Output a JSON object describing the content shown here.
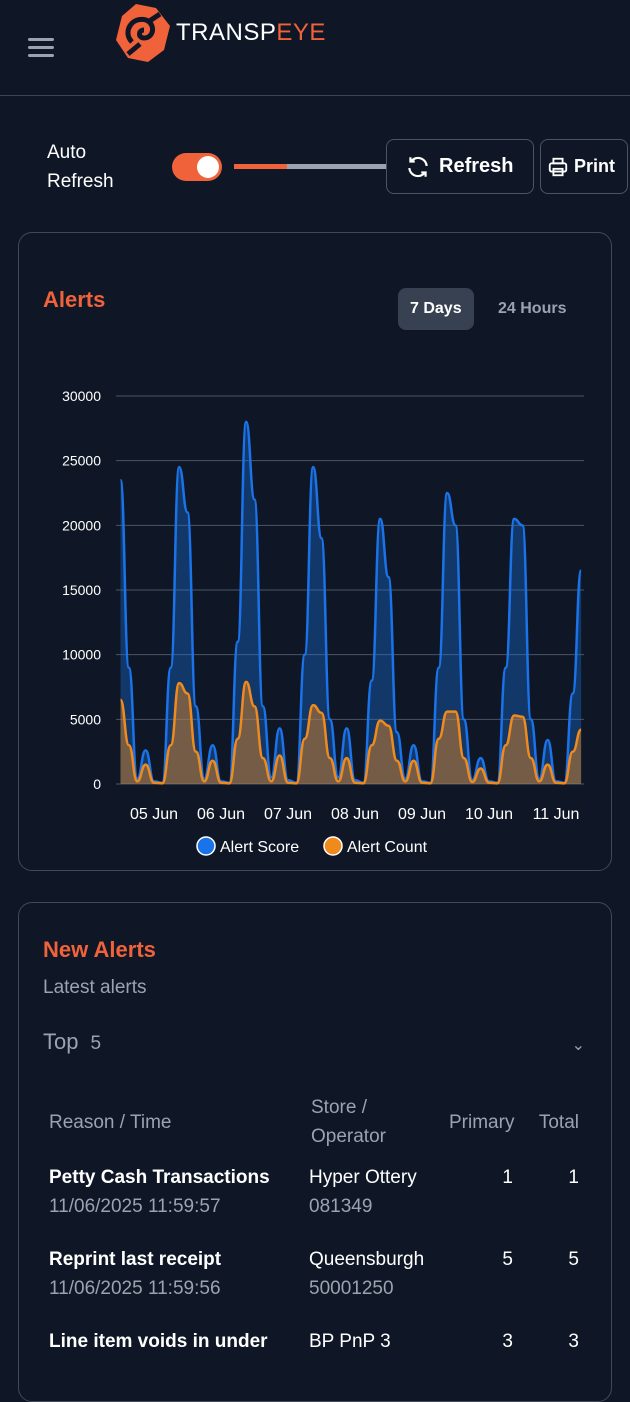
{
  "header": {
    "logo_text_a": "TRANSP",
    "logo_text_b": "EYE"
  },
  "controls": {
    "auto_refresh_label": "Auto Refresh",
    "auto_refresh_on": true,
    "refresh_progress": 0.35,
    "refresh_label": "Refresh",
    "print_label": "Print"
  },
  "alerts_card": {
    "title": "Alerts",
    "ranges": [
      "7 Days",
      "24 Hours"
    ],
    "selected_range": "7 Days"
  },
  "colors": {
    "accent": "#f0623a",
    "score": "#1a73e8",
    "count": "#f08a1c",
    "background": "#0f1726"
  },
  "chart_data": {
    "type": "area",
    "ylim": [
      0,
      30000
    ],
    "yticks": [
      0,
      5000,
      10000,
      15000,
      20000,
      25000,
      30000
    ],
    "xtick_labels": [
      "05 Jun",
      "06 Jun",
      "07 Jun",
      "08 Jun",
      "09 Jun",
      "10 Jun",
      "11 Jun"
    ],
    "grid": true,
    "legend_placement": "bottom",
    "x": [
      "04 Jun 12:00",
      "04 Jun 15:00",
      "04 Jun 18:00",
      "04 Jun 21:00",
      "05 Jun 00:00",
      "05 Jun 03:00",
      "05 Jun 06:00",
      "05 Jun 09:00",
      "05 Jun 12:00",
      "05 Jun 15:00",
      "05 Jun 18:00",
      "05 Jun 21:00",
      "06 Jun 00:00",
      "06 Jun 03:00",
      "06 Jun 06:00",
      "06 Jun 09:00",
      "06 Jun 12:00",
      "06 Jun 15:00",
      "06 Jun 18:00",
      "06 Jun 21:00",
      "07 Jun 00:00",
      "07 Jun 03:00",
      "07 Jun 06:00",
      "07 Jun 09:00",
      "07 Jun 12:00",
      "07 Jun 15:00",
      "07 Jun 18:00",
      "07 Jun 21:00",
      "08 Jun 00:00",
      "08 Jun 03:00",
      "08 Jun 06:00",
      "08 Jun 09:00",
      "08 Jun 12:00",
      "08 Jun 15:00",
      "08 Jun 18:00",
      "08 Jun 21:00",
      "09 Jun 00:00",
      "09 Jun 03:00",
      "09 Jun 06:00",
      "09 Jun 09:00",
      "09 Jun 12:00",
      "09 Jun 15:00",
      "09 Jun 18:00",
      "09 Jun 21:00",
      "10 Jun 00:00",
      "10 Jun 03:00",
      "10 Jun 06:00",
      "10 Jun 09:00",
      "10 Jun 12:00",
      "10 Jun 15:00",
      "10 Jun 18:00",
      "10 Jun 21:00",
      "11 Jun 00:00",
      "11 Jun 03:00",
      "11 Jun 06:00",
      "11 Jun 09:00"
    ],
    "series": [
      {
        "name": "Alert Score",
        "values": [
          23500,
          9000,
          400,
          2600,
          200,
          100,
          9000,
          24500,
          21000,
          6000,
          400,
          3000,
          200,
          100,
          11000,
          28000,
          22000,
          6000,
          500,
          4300,
          300,
          100,
          10000,
          24500,
          19000,
          5000,
          500,
          4300,
          300,
          100,
          8000,
          20500,
          16000,
          4000,
          400,
          3000,
          200,
          100,
          9000,
          22500,
          20000,
          5000,
          300,
          2000,
          200,
          100,
          9000,
          20500,
          20000,
          5000,
          400,
          3400,
          200,
          100,
          7000,
          16500
        ]
      },
      {
        "name": "Alert Count",
        "values": [
          6500,
          3000,
          200,
          1500,
          100,
          50,
          3000,
          7800,
          7000,
          2500,
          200,
          1800,
          100,
          50,
          3500,
          7900,
          6000,
          2000,
          200,
          2200,
          100,
          50,
          3500,
          6100,
          5500,
          2000,
          200,
          2000,
          100,
          50,
          3000,
          4900,
          4500,
          1800,
          200,
          1800,
          100,
          50,
          3500,
          5600,
          5600,
          2000,
          150,
          1200,
          100,
          50,
          3000,
          5300,
          5200,
          2000,
          200,
          1500,
          100,
          50,
          2500,
          4200
        ]
      }
    ]
  },
  "new_alerts": {
    "title": "New Alerts",
    "subtitle": "Latest alerts",
    "top_label": "Top",
    "top_value": "5",
    "columns": [
      "Reason / Time",
      "Store / Operator",
      "Primary",
      "Total"
    ],
    "rows": [
      {
        "reason": "Petty Cash Transactions",
        "time": "11/06/2025 11:59:57",
        "store": "Hyper Ottery",
        "operator": "081349",
        "primary": "1",
        "total": "1"
      },
      {
        "reason": "Reprint last receipt",
        "time": "11/06/2025 11:59:56",
        "store": "Queensburgh",
        "operator": "50001250",
        "primary": "5",
        "total": "5"
      },
      {
        "reason": "Line item voids in under",
        "time": "",
        "store": "BP PnP 3",
        "operator": "",
        "primary": "3",
        "total": "3"
      }
    ]
  }
}
